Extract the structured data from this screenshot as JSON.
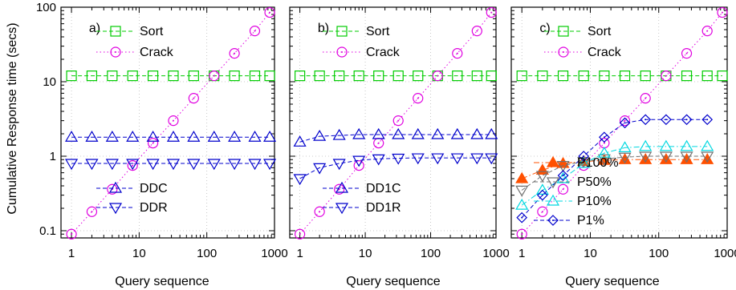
{
  "figure": {
    "ylabel": "Cumulative Response time (secs)",
    "xlabel": "Query sequence"
  },
  "chart_data": [
    {
      "type": "line",
      "panel_label": "a)",
      "xlabel": "Query sequence",
      "ylabel": "Cumulative Response time (secs)",
      "xscale": "log",
      "yscale": "log",
      "xlim": [
        0.7,
        1000
      ],
      "ylim": [
        0.08,
        100
      ],
      "x_ticks": [
        "1",
        "10",
        "100",
        "1000"
      ],
      "y_ticks": [
        "0.1",
        "1",
        "10",
        "100"
      ],
      "grid": true,
      "legend_position": "top-right and bottom-left",
      "x": [
        1,
        2,
        4,
        8,
        16,
        32,
        64,
        128,
        256,
        512,
        850
      ],
      "series": [
        {
          "name": "Sort",
          "marker": "square",
          "color": "#00cc00",
          "dash": "dashed",
          "values": [
            12,
            12,
            12,
            12,
            12,
            12,
            12,
            12,
            12,
            12,
            12
          ]
        },
        {
          "name": "Crack",
          "marker": "circle",
          "color": "#e000e0",
          "dash": "dotted",
          "values": [
            0.09,
            0.18,
            0.36,
            0.75,
            1.5,
            3,
            6,
            12,
            24,
            48,
            85
          ]
        },
        {
          "name": "DDC",
          "marker": "triangle-up",
          "color": "#0000cc",
          "dash": "dashed",
          "values": [
            1.8,
            1.8,
            1.8,
            1.8,
            1.8,
            1.8,
            1.8,
            1.8,
            1.8,
            1.8,
            1.8
          ]
        },
        {
          "name": "DDR",
          "marker": "triangle-down",
          "color": "#0000cc",
          "dash": "dashed",
          "values": [
            0.8,
            0.8,
            0.8,
            0.8,
            0.8,
            0.8,
            0.8,
            0.8,
            0.8,
            0.8,
            0.8
          ]
        }
      ]
    },
    {
      "type": "line",
      "panel_label": "b)",
      "xlabel": "Query sequence",
      "xscale": "log",
      "yscale": "log",
      "xlim": [
        0.7,
        1000
      ],
      "ylim": [
        0.08,
        100
      ],
      "x_ticks": [
        "1",
        "10",
        "100",
        "1000"
      ],
      "grid": true,
      "legend_position": "top-right and bottom-left",
      "x": [
        1,
        2,
        4,
        8,
        16,
        32,
        64,
        128,
        256,
        512,
        850
      ],
      "series": [
        {
          "name": "Sort",
          "marker": "square",
          "color": "#00cc00",
          "dash": "dashed",
          "values": [
            12,
            12,
            12,
            12,
            12,
            12,
            12,
            12,
            12,
            12,
            12
          ]
        },
        {
          "name": "Crack",
          "marker": "circle",
          "color": "#e000e0",
          "dash": "dotted",
          "values": [
            0.09,
            0.18,
            0.36,
            0.75,
            1.5,
            3,
            6,
            12,
            24,
            48,
            85
          ]
        },
        {
          "name": "DD1C",
          "marker": "triangle-up",
          "color": "#0000cc",
          "dash": "dashed",
          "values": [
            1.55,
            1.85,
            1.9,
            1.95,
            1.95,
            1.95,
            1.95,
            1.95,
            1.95,
            1.95,
            1.95
          ]
        },
        {
          "name": "DD1R",
          "marker": "triangle-down",
          "color": "#0000cc",
          "dash": "dashed",
          "values": [
            0.5,
            0.7,
            0.8,
            0.88,
            0.92,
            0.94,
            0.95,
            0.95,
            0.95,
            0.95,
            0.95
          ]
        }
      ]
    },
    {
      "type": "line",
      "panel_label": "c)",
      "xlabel": "Query sequence",
      "xscale": "log",
      "yscale": "log",
      "xlim": [
        0.7,
        1000
      ],
      "ylim": [
        0.08,
        100
      ],
      "x_ticks": [
        "1",
        "10",
        "100",
        "1000"
      ],
      "grid": true,
      "legend_position": "top-right and bottom-right",
      "x_main": [
        1,
        2,
        4,
        8,
        16,
        32,
        64,
        128,
        256,
        512,
        850
      ],
      "x_partial": [
        1,
        2,
        4,
        8,
        16,
        32,
        64,
        128,
        256,
        512
      ],
      "series": [
        {
          "name": "Sort",
          "marker": "square",
          "color": "#00cc00",
          "dash": "dashed",
          "values": [
            12,
            12,
            12,
            12,
            12,
            12,
            12,
            12,
            12,
            12,
            12
          ]
        },
        {
          "name": "Crack",
          "marker": "circle",
          "color": "#e000e0",
          "dash": "dotted",
          "values": [
            0.09,
            0.18,
            0.36,
            0.75,
            1.5,
            3,
            6,
            12,
            24,
            48,
            85
          ]
        },
        {
          "name": "P100%",
          "marker": "triangle-up-filled",
          "color": "#ff5000",
          "dash": "dashdot",
          "values": [
            0.5,
            0.65,
            0.8,
            0.85,
            0.88,
            0.9,
            0.9,
            0.9,
            0.9,
            0.9
          ]
        },
        {
          "name": "P50%",
          "marker": "triangle-down",
          "color": "#707070",
          "dash": "dashed",
          "values": [
            0.35,
            0.55,
            0.75,
            0.85,
            0.92,
            0.97,
            1.0,
            1.0,
            1.0,
            1.0
          ]
        },
        {
          "name": "P10%",
          "marker": "triangle-up",
          "color": "#00d8e0",
          "dash": "dashdot",
          "values": [
            0.22,
            0.35,
            0.5,
            0.8,
            1.1,
            1.3,
            1.35,
            1.35,
            1.35,
            1.35
          ]
        },
        {
          "name": "P1%",
          "marker": "diamond",
          "color": "#0000cc",
          "dash": "dashed",
          "values": [
            0.15,
            0.3,
            0.55,
            1.0,
            1.8,
            2.8,
            3.1,
            3.1,
            3.1,
            3.1
          ]
        }
      ]
    }
  ]
}
